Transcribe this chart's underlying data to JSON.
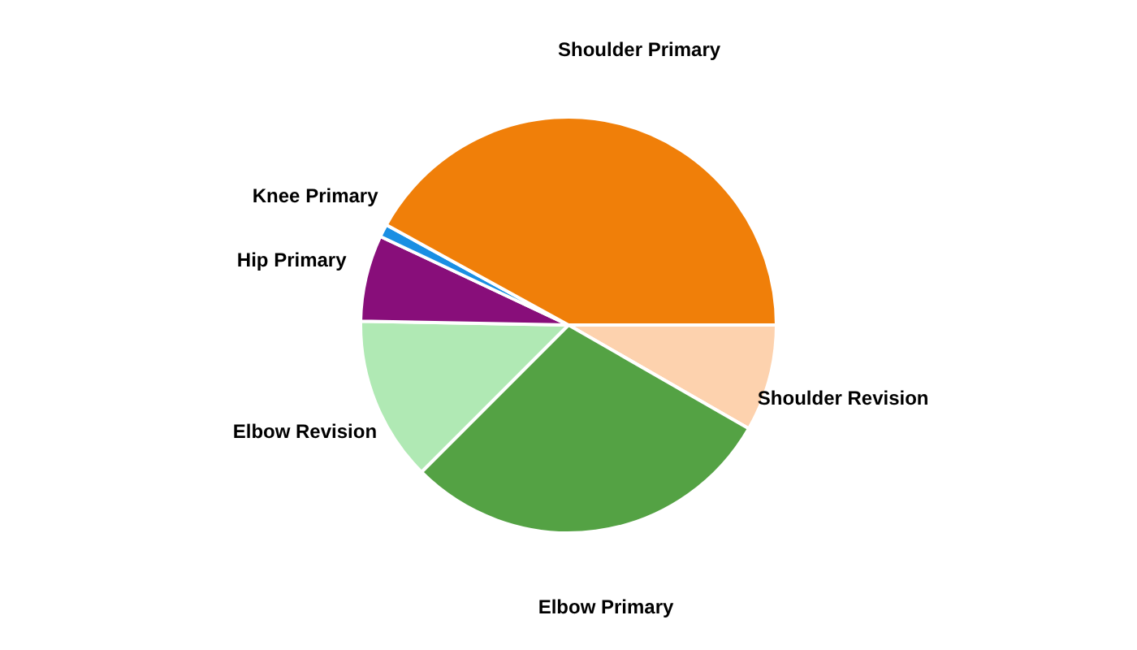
{
  "chart_data": {
    "type": "pie",
    "categories": [
      "Shoulder Revision",
      "Elbow Primary",
      "Elbow Revision",
      "Hip Primary",
      "Knee Primary",
      "Shoulder Primary"
    ],
    "values": [
      8.3,
      29.2,
      12.8,
      6.7,
      1,
      42
    ],
    "colors": [
      "#fdd2ae",
      "#54a244",
      "#b0e9b4",
      "#880e7a",
      "#1a8fe3",
      "#f07f09"
    ],
    "legend": false
  }
}
